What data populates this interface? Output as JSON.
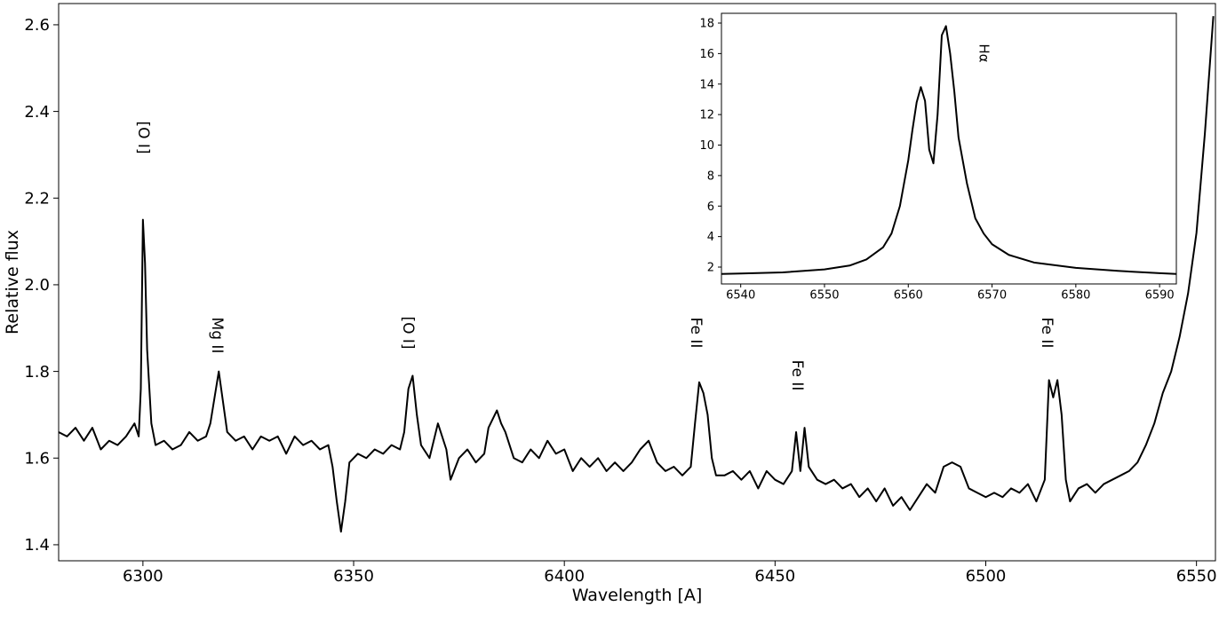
{
  "chart_data": [
    {
      "type": "line",
      "xlabel": "Wavelength [A]",
      "ylabel": "Relative flux",
      "color": "#000000",
      "xlim": [
        6280,
        6554.5
      ],
      "ylim": [
        1.363,
        2.649
      ],
      "xticks": [
        6300,
        6350,
        6400,
        6450,
        6500,
        6550
      ],
      "yticks": [
        1.4,
        1.6,
        1.8,
        {
          "value": 2,
          "label": "2.0"
        },
        2.2,
        2.4,
        2.6
      ],
      "annotations": [
        "[O I]",
        "Mg II",
        "[O I]",
        "Fe II",
        "Fe II",
        "Fe II"
      ],
      "x": [
        6280,
        6282,
        6284,
        6286,
        6288,
        6290,
        6292,
        6294,
        6296,
        6298,
        6299,
        6299.5,
        6300,
        6300.5,
        6301,
        6302,
        6303,
        6305,
        6307,
        6309,
        6311,
        6313,
        6315,
        6316,
        6317,
        6318,
        6319,
        6320,
        6322,
        6324,
        6326,
        6328,
        6330,
        6332,
        6334,
        6336,
        6338,
        6340,
        6342,
        6344,
        6345,
        6346,
        6347,
        6348,
        6349,
        6351,
        6353,
        6355,
        6357,
        6359,
        6361,
        6362,
        6363,
        6364,
        6365,
        6366,
        6368,
        6370,
        6372,
        6373,
        6375,
        6377,
        6379,
        6381,
        6382,
        6384,
        6385,
        6386,
        6388,
        6390,
        6392,
        6394,
        6396,
        6398,
        6400,
        6402,
        6404,
        6406,
        6408,
        6410,
        6412,
        6414,
        6416,
        6418,
        6420,
        6422,
        6424,
        6426,
        6428,
        6430,
        6431,
        6432,
        6433,
        6434,
        6435,
        6436,
        6438,
        6440,
        6442,
        6444,
        6446,
        6448,
        6450,
        6452,
        6454,
        6455,
        6456,
        6457,
        6458,
        6460,
        6462,
        6464,
        6466,
        6468,
        6470,
        6472,
        6474,
        6476,
        6478,
        6480,
        6482,
        6484,
        6486,
        6488,
        6490,
        6492,
        6494,
        6496,
        6498,
        6500,
        6502,
        6504,
        6506,
        6508,
        6510,
        6512,
        6514,
        6515,
        6516,
        6517,
        6518,
        6519,
        6520,
        6522,
        6524,
        6526,
        6528,
        6530,
        6532,
        6534,
        6536,
        6538,
        6540,
        6542,
        6544,
        6546,
        6548,
        6550,
        6552,
        6554
      ],
      "values": [
        1.66,
        1.65,
        1.67,
        1.64,
        1.67,
        1.62,
        1.64,
        1.63,
        1.65,
        1.68,
        1.65,
        1.76,
        2.15,
        2.05,
        1.85,
        1.68,
        1.63,
        1.64,
        1.62,
        1.63,
        1.66,
        1.64,
        1.65,
        1.68,
        1.74,
        1.8,
        1.73,
        1.66,
        1.64,
        1.65,
        1.62,
        1.65,
        1.64,
        1.65,
        1.61,
        1.65,
        1.63,
        1.64,
        1.62,
        1.63,
        1.58,
        1.5,
        1.43,
        1.5,
        1.59,
        1.61,
        1.6,
        1.62,
        1.61,
        1.63,
        1.62,
        1.66,
        1.76,
        1.79,
        1.7,
        1.63,
        1.6,
        1.68,
        1.62,
        1.55,
        1.6,
        1.62,
        1.59,
        1.61,
        1.67,
        1.71,
        1.68,
        1.66,
        1.6,
        1.59,
        1.62,
        1.6,
        1.64,
        1.61,
        1.62,
        1.57,
        1.6,
        1.58,
        1.6,
        1.57,
        1.59,
        1.57,
        1.59,
        1.62,
        1.64,
        1.59,
        1.57,
        1.58,
        1.56,
        1.58,
        1.68,
        1.775,
        1.75,
        1.7,
        1.6,
        1.56,
        1.56,
        1.57,
        1.55,
        1.57,
        1.53,
        1.57,
        1.55,
        1.54,
        1.57,
        1.66,
        1.57,
        1.67,
        1.58,
        1.55,
        1.54,
        1.55,
        1.53,
        1.54,
        1.51,
        1.53,
        1.5,
        1.53,
        1.49,
        1.51,
        1.48,
        1.51,
        1.54,
        1.52,
        1.58,
        1.59,
        1.58,
        1.53,
        1.52,
        1.51,
        1.52,
        1.51,
        1.53,
        1.52,
        1.54,
        1.5,
        1.55,
        1.78,
        1.74,
        1.78,
        1.7,
        1.55,
        1.5,
        1.53,
        1.54,
        1.52,
        1.54,
        1.55,
        1.56,
        1.57,
        1.59,
        1.63,
        1.68,
        1.75,
        1.8,
        1.88,
        1.98,
        2.12,
        2.35,
        2.62
      ]
    },
    {
      "type": "line",
      "color": "#000000",
      "xlim": [
        6537.7,
        6592
      ],
      "ylim": [
        0.895,
        18.64
      ],
      "xticks": [
        6540,
        6550,
        6560,
        6570,
        6580,
        6590
      ],
      "yticks": [
        2,
        4,
        6,
        8,
        10,
        12,
        14,
        16,
        18
      ],
      "annotations": [
        "Hα"
      ],
      "x": [
        6537.7,
        6540,
        6545,
        6550,
        6553,
        6555,
        6557,
        6558,
        6559,
        6560,
        6560.5,
        6561,
        6561.5,
        6562,
        6562.5,
        6563,
        6563.5,
        6564,
        6564.5,
        6565,
        6565.5,
        6566,
        6567,
        6568,
        6569,
        6570,
        6572,
        6575,
        6580,
        6585,
        6590,
        6592
      ],
      "values": [
        1.55,
        1.58,
        1.65,
        1.85,
        2.1,
        2.5,
        3.3,
        4.2,
        6.0,
        9.0,
        11,
        12.8,
        13.8,
        12.9,
        9.7,
        8.8,
        12,
        17.2,
        17.8,
        16,
        13.5,
        10.5,
        7.5,
        5.2,
        4.2,
        3.5,
        2.8,
        2.3,
        1.95,
        1.75,
        1.6,
        1.55
      ]
    }
  ]
}
